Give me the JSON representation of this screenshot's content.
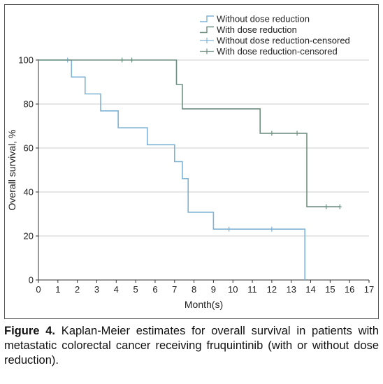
{
  "chart_data": {
    "type": "line",
    "step": true,
    "xlabel": "Month(s)",
    "ylabel": "Overall survival, %",
    "xlim": [
      0,
      17
    ],
    "ylim": [
      0,
      100
    ],
    "x_ticks": [
      0,
      1,
      2,
      3,
      4,
      5,
      6,
      7,
      8,
      9,
      10,
      11,
      12,
      13,
      14,
      15,
      16,
      17
    ],
    "y_ticks": [
      0,
      20,
      40,
      60,
      80,
      100
    ],
    "grid": "horizontal",
    "legend_position": "top-right",
    "legend": [
      "Without dose reduction",
      "With dose reduction",
      "Without dose reduction-censored",
      "With dose reduction-censored"
    ],
    "colors": {
      "without": "#7eb3d6",
      "with": "#6f8f80",
      "grid": "#cccccc",
      "axis": "#333333",
      "frame": "#555555"
    },
    "series": [
      {
        "name": "Without dose reduction",
        "color_key": "without",
        "points": [
          [
            0,
            100
          ],
          [
            1.7,
            100
          ],
          [
            1.7,
            92.3
          ],
          [
            2.4,
            92.3
          ],
          [
            2.4,
            84.6
          ],
          [
            3.2,
            84.6
          ],
          [
            3.2,
            76.9
          ],
          [
            4.1,
            76.9
          ],
          [
            4.1,
            69.2
          ],
          [
            5.6,
            69.2
          ],
          [
            5.6,
            61.5
          ],
          [
            7.0,
            61.5
          ],
          [
            7.0,
            53.8
          ],
          [
            7.4,
            53.8
          ],
          [
            7.4,
            46.1
          ],
          [
            7.7,
            46.1
          ],
          [
            7.7,
            30.8
          ],
          [
            9.0,
            30.8
          ],
          [
            9.0,
            23.1
          ],
          [
            13.7,
            23.1
          ],
          [
            13.7,
            0
          ]
        ],
        "censored": [
          [
            1.5,
            100
          ],
          [
            9.8,
            23.1
          ],
          [
            12.0,
            23.1
          ]
        ]
      },
      {
        "name": "With dose reduction",
        "color_key": "with",
        "points": [
          [
            0,
            100
          ],
          [
            7.1,
            100
          ],
          [
            7.1,
            88.9
          ],
          [
            7.4,
            88.9
          ],
          [
            7.4,
            77.8
          ],
          [
            11.4,
            77.8
          ],
          [
            11.4,
            66.7
          ],
          [
            13.8,
            66.7
          ],
          [
            13.8,
            33.3
          ],
          [
            15.5,
            33.3
          ]
        ],
        "censored": [
          [
            4.3,
            100
          ],
          [
            4.8,
            100
          ],
          [
            12.0,
            66.7
          ],
          [
            13.3,
            66.7
          ],
          [
            14.8,
            33.3
          ],
          [
            15.5,
            33.3
          ]
        ]
      }
    ]
  },
  "caption": {
    "label": "Figure 4.",
    "text": " Kaplan-Meier estimates for overall survival in patients with metastatic colorectal cancer receiving fruquintinib (with or without dose reduction)."
  }
}
